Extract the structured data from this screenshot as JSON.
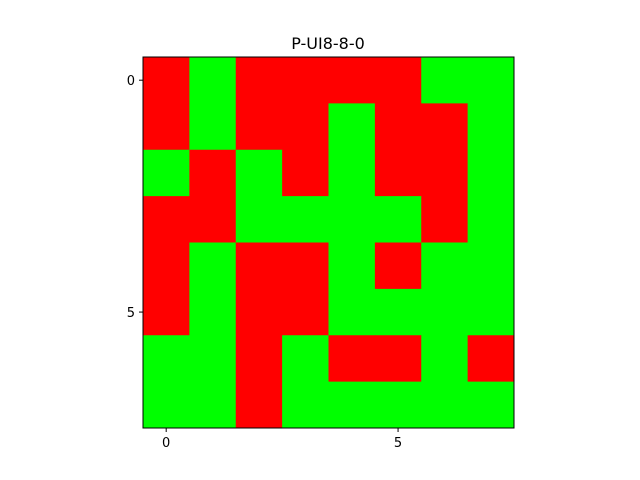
{
  "chart_data": {
    "type": "heatmap",
    "title": "P-UI8-8-0",
    "xlabel": "",
    "ylabel": "",
    "rows": 8,
    "cols": 8,
    "values": [
      [
        1,
        0,
        1,
        1,
        1,
        1,
        0,
        0
      ],
      [
        1,
        0,
        1,
        1,
        0,
        1,
        1,
        0
      ],
      [
        0,
        1,
        0,
        1,
        0,
        1,
        1,
        0
      ],
      [
        1,
        1,
        0,
        0,
        0,
        0,
        1,
        0
      ],
      [
        1,
        0,
        1,
        1,
        0,
        1,
        0,
        0
      ],
      [
        1,
        0,
        1,
        1,
        0,
        0,
        0,
        0
      ],
      [
        0,
        0,
        1,
        0,
        1,
        1,
        0,
        1
      ],
      [
        0,
        0,
        1,
        0,
        0,
        0,
        0,
        0
      ]
    ],
    "value_colors": {
      "0": "#00ff00",
      "1": "#ff0000"
    },
    "x_ticks": [
      0,
      5
    ],
    "y_ticks": [
      0,
      5
    ],
    "x_tick_labels": [
      "0",
      "5"
    ],
    "y_tick_labels": [
      "0",
      "5"
    ],
    "xlim": [
      -0.5,
      7.5
    ],
    "ylim": [
      7.5,
      -0.5
    ],
    "grid": false,
    "legend": "none"
  }
}
